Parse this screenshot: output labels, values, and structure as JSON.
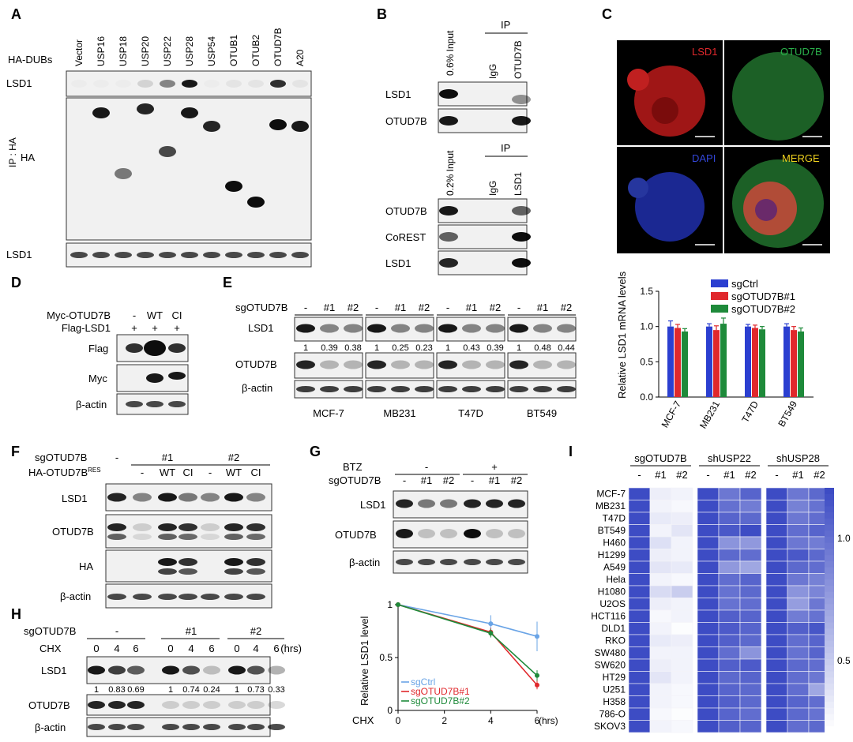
{
  "panels": {
    "A": {
      "letter": "A",
      "header_label": "HA-DUBs",
      "lanes": [
        "Vector",
        "USP16",
        "USP18",
        "USP20",
        "USP22",
        "USP28",
        "USP54",
        "OTUB1",
        "OTUB2",
        "OTUD7B",
        "A20"
      ],
      "ip_label": "IP : HA",
      "rows": [
        "LSD1",
        "HA",
        "LSD1"
      ]
    },
    "B": {
      "letter": "B",
      "top": {
        "input_label": "0.6% Input",
        "ip_label": "IP",
        "lanes": [
          "IgG",
          "OTUD7B"
        ],
        "rows": [
          "LSD1",
          "OTUD7B"
        ]
      },
      "bottom": {
        "input_label": "0.2% Input",
        "ip_label": "IP",
        "lanes": [
          "IgG",
          "LSD1"
        ],
        "rows": [
          "OTUD7B",
          "CoREST",
          "LSD1"
        ]
      }
    },
    "C": {
      "letter": "C",
      "labels": [
        "LSD1",
        "OTUD7B",
        "DAPI",
        "MERGE"
      ],
      "label_colors": [
        "#e0282c",
        "#2bb24c",
        "#3346d8",
        "#f0d21e"
      ]
    },
    "D": {
      "letter": "D",
      "conditions": [
        {
          "label": "Myc-OTUD7B",
          "values": [
            "-",
            "WT",
            "CI"
          ]
        },
        {
          "label": "Flag-LSD1",
          "values": [
            "+",
            "+",
            "+"
          ]
        }
      ],
      "rows": [
        "Flag",
        "Myc",
        "β-actin"
      ]
    },
    "E": {
      "letter": "E",
      "sg_label": "sgOTUD7B",
      "lanes": [
        "-",
        "#1",
        "#2"
      ],
      "cell_lines": [
        "MCF-7",
        "MB231",
        "T47D",
        "BT549"
      ],
      "rows": [
        "LSD1",
        "OTUD7B",
        "β-actin"
      ],
      "quant": [
        [
          "1",
          "0.39",
          "0.38"
        ],
        [
          "1",
          "0.25",
          "0.23"
        ],
        [
          "1",
          "0.43",
          "0.39"
        ],
        [
          "1",
          "0.48",
          "0.44"
        ]
      ]
    },
    "F": {
      "letter": "F",
      "sg_label": "sgOTUD7B",
      "sg_values": [
        "-",
        "#1",
        "#2"
      ],
      "res_label": "HA-OTUD7B",
      "res_sup": "RES",
      "res_values": [
        "-",
        "WT",
        "CI",
        "-",
        "WT",
        "CI"
      ],
      "rows": [
        "LSD1",
        "OTUD7B",
        "HA",
        "β-actin"
      ]
    },
    "G": {
      "letter": "G",
      "btz_label": "BTZ",
      "btz_values": [
        "-",
        "+"
      ],
      "sg_label": "sgOTUD7B",
      "sg_values": [
        "-",
        "#1",
        "#2",
        "-",
        "#1",
        "#2"
      ],
      "rows": [
        "LSD1",
        "OTUD7B",
        "β-actin"
      ]
    },
    "H": {
      "letter": "H",
      "sg_label": "sgOTUD7B",
      "sg_values": [
        "-",
        "#1",
        "#2"
      ],
      "chx_label": "CHX",
      "times": [
        "0",
        "4",
        "6",
        "0",
        "4",
        "6",
        "0",
        "4",
        "6"
      ],
      "unit": "(hrs)",
      "rows": [
        "LSD1",
        "OTUD7B",
        "β-actin"
      ],
      "quant": [
        "1",
        "0.83",
        "0.69",
        "1",
        "0.74",
        "0.24",
        "1",
        "0.73",
        "0.33"
      ]
    },
    "I": {
      "letter": "I",
      "groups": [
        "sgOTUD7B",
        "shUSP22",
        "shUSP28"
      ],
      "group_lanes": [
        "-",
        "#1",
        "#2"
      ],
      "colorbar_ticks": [
        "1.0",
        "0.5"
      ]
    }
  },
  "chart_data": [
    {
      "type": "bar",
      "title": "",
      "ylabel": "Relative LSD1 mRNA levels",
      "xlabel": "",
      "categories": [
        "MCF-7",
        "MB231",
        "T47D",
        "BT549"
      ],
      "series": [
        {
          "name": "sgCtrl",
          "color": "#2b3fd0",
          "values": [
            1.0,
            1.0,
            1.0,
            1.0
          ],
          "errors": [
            0.08,
            0.04,
            0.03,
            0.04
          ]
        },
        {
          "name": "sgOTUD7B#1",
          "color": "#e0282c",
          "values": [
            0.98,
            0.95,
            0.98,
            0.95
          ],
          "errors": [
            0.05,
            0.06,
            0.04,
            0.05
          ]
        },
        {
          "name": "sgOTUD7B#2",
          "color": "#1e8a3a",
          "values": [
            0.93,
            1.04,
            0.96,
            0.93
          ],
          "errors": [
            0.04,
            0.08,
            0.04,
            0.05
          ]
        }
      ],
      "ylim": [
        0,
        1.5
      ],
      "yticks": [
        "0.0",
        "0.5",
        "1.0",
        "1.5"
      ],
      "legend": "top"
    },
    {
      "type": "line",
      "title": "",
      "ylabel": "Relative LSD1 level",
      "xlabel": "CHX",
      "x_unit": "(hrs)",
      "x": [
        0,
        4,
        6
      ],
      "xticks": [
        "0",
        "2",
        "4",
        "6"
      ],
      "yticks": [
        "0",
        "0.5",
        "1"
      ],
      "xlim": [
        0,
        6
      ],
      "ylim": [
        0,
        1
      ],
      "series": [
        {
          "name": "sgCtrl",
          "color": "#6aa4e6",
          "values": [
            1.0,
            0.82,
            0.7
          ],
          "errors": [
            0.0,
            0.08,
            0.14
          ]
        },
        {
          "name": "sgOTUD7B#1",
          "color": "#e0282c",
          "values": [
            1.0,
            0.74,
            0.24
          ],
          "errors": [
            0.0,
            0.04,
            0.04
          ]
        },
        {
          "name": "sgOTUD7B#2",
          "color": "#1e8a3a",
          "values": [
            1.0,
            0.73,
            0.33
          ],
          "errors": [
            0.0,
            0.04,
            0.05
          ]
        }
      ],
      "legend": "bottom-left"
    },
    {
      "type": "heatmap",
      "title": "",
      "rows": [
        "MCF-7",
        "MB231",
        "T47D",
        "BT549",
        "H460",
        "H1299",
        "A549",
        "Hela",
        "H1080",
        "U2OS",
        "HCT116",
        "DLD1",
        "RKO",
        "SW480",
        "SW620",
        "HT29",
        "U251",
        "H358",
        "786-O",
        "SKOV3"
      ],
      "columns": [
        "-",
        "#1",
        "#2",
        "-",
        "#1",
        "#2",
        "-",
        "#1",
        "#2"
      ],
      "column_groups": [
        "sgOTUD7B",
        "sgOTUD7B",
        "sgOTUD7B",
        "shUSP22",
        "shUSP22",
        "shUSP22",
        "shUSP28",
        "shUSP28",
        "shUSP28"
      ],
      "values": [
        [
          1.0,
          0.32,
          0.3,
          1.0,
          0.82,
          0.9,
          1.0,
          0.82,
          0.88
        ],
        [
          1.0,
          0.3,
          0.28,
          1.0,
          0.85,
          0.8,
          1.0,
          0.78,
          0.84
        ],
        [
          1.0,
          0.34,
          0.32,
          1.0,
          0.9,
          0.88,
          1.0,
          0.82,
          0.86
        ],
        [
          1.0,
          0.3,
          0.36,
          1.0,
          0.95,
          1.0,
          1.0,
          0.86,
          0.9
        ],
        [
          1.0,
          0.38,
          0.3,
          1.0,
          0.7,
          0.68,
          1.0,
          0.82,
          0.8
        ],
        [
          1.0,
          0.32,
          0.3,
          1.0,
          0.88,
          0.86,
          1.0,
          0.95,
          0.88
        ],
        [
          1.0,
          0.36,
          0.34,
          1.0,
          0.68,
          0.62,
          1.0,
          0.88,
          0.86
        ],
        [
          1.0,
          0.3,
          0.28,
          1.0,
          0.86,
          0.9,
          1.0,
          0.82,
          0.78
        ],
        [
          1.0,
          0.4,
          0.46,
          1.0,
          0.84,
          0.88,
          1.0,
          0.7,
          0.76
        ],
        [
          1.0,
          0.32,
          0.3,
          1.0,
          0.84,
          0.86,
          1.0,
          0.66,
          0.82
        ],
        [
          1.0,
          0.28,
          0.3,
          1.0,
          0.92,
          0.9,
          1.0,
          0.8,
          0.84
        ],
        [
          1.0,
          0.3,
          0.26,
          1.0,
          0.94,
          0.9,
          1.0,
          0.92,
          0.96
        ],
        [
          1.0,
          0.34,
          0.32,
          1.0,
          0.92,
          0.88,
          1.0,
          0.86,
          0.9
        ],
        [
          1.0,
          0.3,
          0.3,
          1.0,
          0.86,
          0.7,
          1.0,
          0.84,
          0.9
        ],
        [
          1.0,
          0.32,
          0.3,
          1.0,
          0.92,
          0.94,
          1.0,
          0.88,
          0.86
        ],
        [
          1.0,
          0.36,
          0.3,
          1.0,
          0.88,
          0.9,
          1.0,
          0.86,
          0.82
        ],
        [
          1.0,
          0.3,
          0.28,
          1.0,
          0.9,
          0.88,
          1.0,
          0.86,
          0.62
        ],
        [
          1.0,
          0.3,
          0.28,
          1.0,
          0.92,
          0.88,
          1.0,
          0.9,
          0.86
        ],
        [
          1.0,
          0.28,
          0.26,
          1.0,
          0.9,
          0.86,
          1.0,
          0.88,
          0.84
        ],
        [
          1.0,
          0.3,
          0.28,
          1.0,
          0.92,
          0.9,
          1.0,
          0.86,
          0.88
        ]
      ],
      "color_high": "#3d4cc4",
      "color_low": "#ffffff",
      "vmin": 0.25,
      "vmax": 1.0
    }
  ]
}
